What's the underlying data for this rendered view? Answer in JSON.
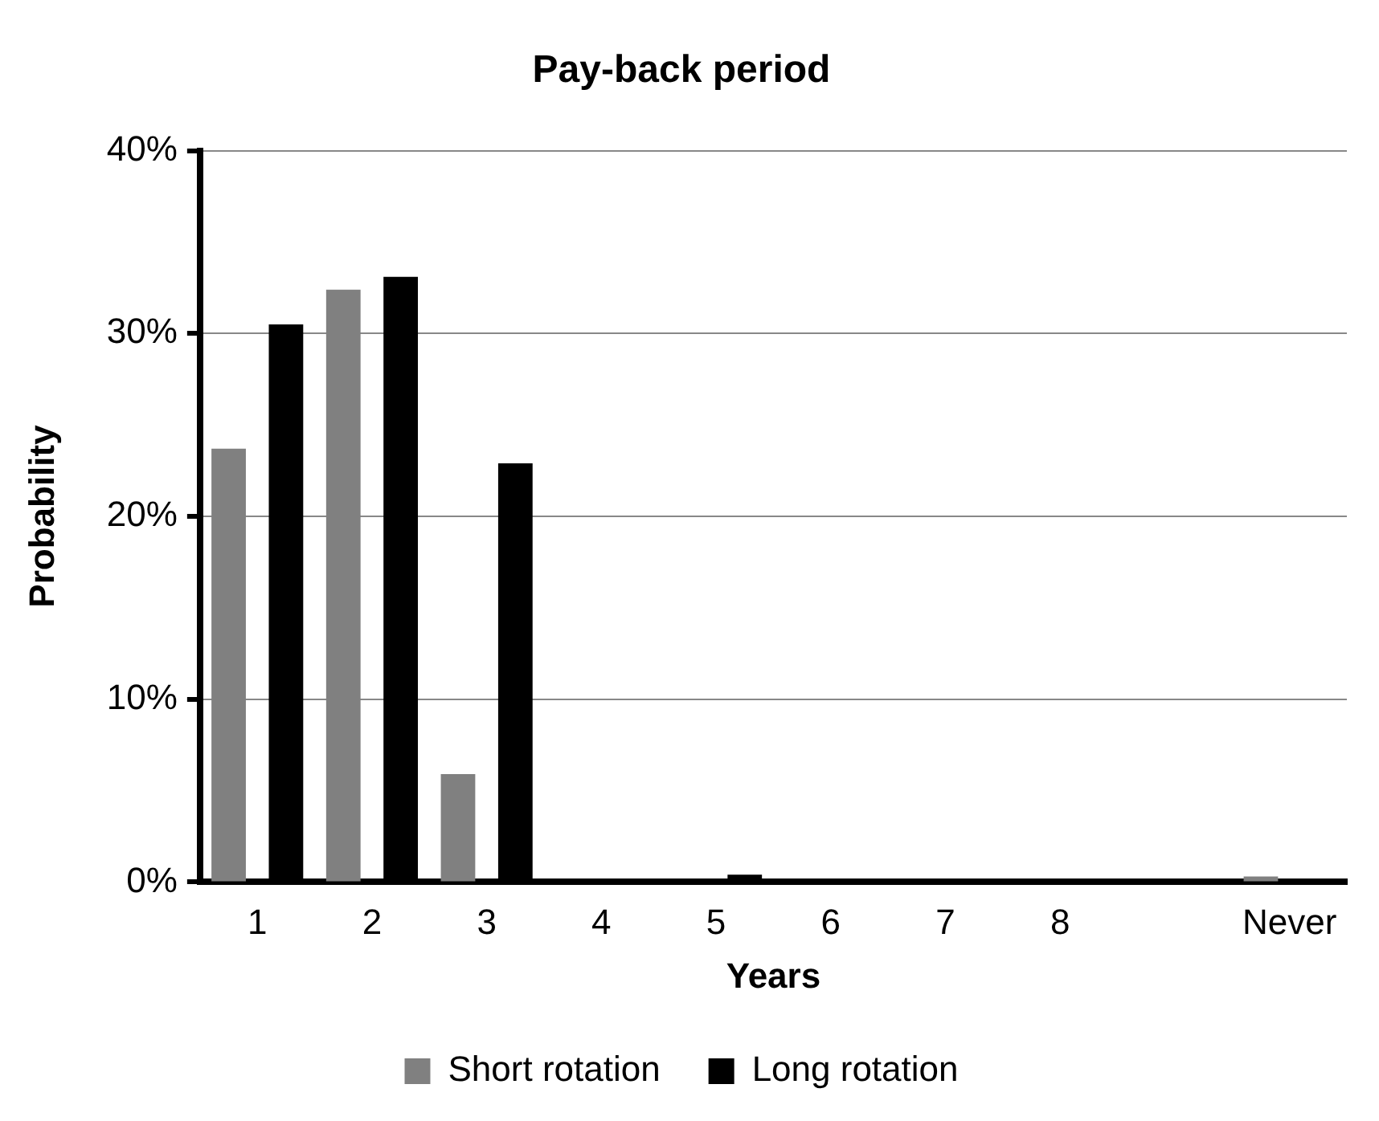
{
  "chart_data": {
    "type": "bar",
    "title": "Pay-back period",
    "xlabel": "Years",
    "ylabel": "Probability",
    "categories": [
      "1",
      "2",
      "3",
      "4",
      "5",
      "6",
      "7",
      "8",
      null,
      "Never"
    ],
    "series": [
      {
        "name": "Short rotation",
        "color": "#808080",
        "values": [
          23.7,
          32.4,
          5.9,
          0,
          0,
          0,
          0,
          0,
          0,
          0.3
        ]
      },
      {
        "name": "Long rotation",
        "color": "#000000",
        "values": [
          30.5,
          33.1,
          22.9,
          0,
          0.4,
          0,
          0,
          0,
          0,
          0
        ]
      }
    ],
    "ylim": [
      0,
      40
    ],
    "yticks": [
      {
        "value": 0,
        "label": "0%"
      },
      {
        "value": 10,
        "label": "10%"
      },
      {
        "value": 20,
        "label": "20%"
      },
      {
        "value": 30,
        "label": "30%"
      },
      {
        "value": 40,
        "label": "40%"
      }
    ],
    "grid": "y",
    "legend": "bottom"
  }
}
